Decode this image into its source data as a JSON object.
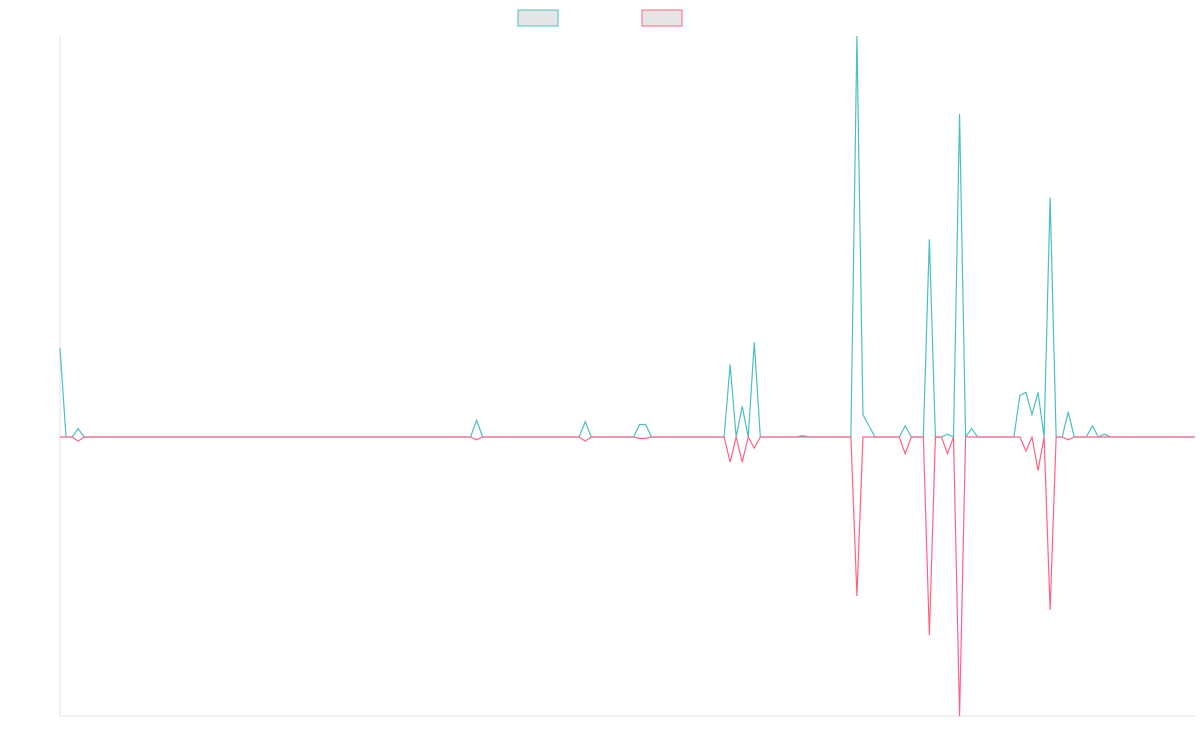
{
  "chart_data": {
    "type": "line",
    "title": "",
    "xlabel": "",
    "ylabel": "",
    "grid": false,
    "legend_position": "top-center",
    "ylim": [
      -1,
      1.1
    ],
    "series": [
      {
        "color": "#4bc0c0",
        "fill": "#e6e6e6",
        "values": [
          0.32,
          0,
          0,
          0.03,
          0,
          0,
          0,
          0,
          0,
          0,
          0,
          0,
          0,
          0,
          0,
          0,
          0,
          0,
          0,
          0,
          0,
          0,
          0,
          0,
          0,
          0,
          0,
          0,
          0,
          0,
          0,
          0,
          0,
          0,
          0,
          0,
          0,
          0,
          0,
          0,
          0,
          0,
          0,
          0,
          0,
          0,
          0,
          0,
          0,
          0,
          0,
          0,
          0,
          0,
          0,
          0,
          0,
          0,
          0,
          0,
          0,
          0,
          0,
          0,
          0,
          0,
          0,
          0,
          0,
          0.06,
          0,
          0,
          0,
          0,
          0,
          0,
          0,
          0,
          0,
          0,
          0,
          0,
          0,
          0,
          0,
          0,
          0,
          0.055,
          0,
          0,
          0,
          0,
          0,
          0,
          0,
          0,
          0.045,
          0.045,
          0,
          0,
          0,
          0,
          0,
          0,
          0,
          0,
          0,
          0,
          0,
          0,
          0,
          0.26,
          0,
          0.11,
          0,
          0.34,
          0,
          0,
          0,
          0,
          0,
          0,
          0,
          0.005,
          0,
          0,
          0,
          0,
          0,
          0,
          0,
          0,
          1.44,
          0.08,
          0.04,
          0,
          0,
          0,
          0,
          0,
          0.04,
          0,
          0,
          0,
          0.71,
          0,
          0,
          0.01,
          0,
          1.16,
          0,
          0.03,
          0,
          0,
          0,
          0,
          0,
          0,
          0,
          0.15,
          0.16,
          0.08,
          0.16,
          0,
          0.86,
          0,
          0,
          0.09,
          0,
          0,
          0,
          0.04,
          0,
          0.01,
          0,
          0,
          0,
          0,
          0,
          0,
          0,
          0,
          0,
          0,
          0,
          0,
          0,
          0,
          0
        ]
      },
      {
        "color": "#ff6384",
        "fill": "#e6e6e6",
        "values": [
          0,
          0,
          0,
          -0.015,
          0,
          0,
          0,
          0,
          0,
          0,
          0,
          0,
          0,
          0,
          0,
          0,
          0,
          0,
          0,
          0,
          0,
          0,
          0,
          0,
          0,
          0,
          0,
          0,
          0,
          0,
          0,
          0,
          0,
          0,
          0,
          0,
          0,
          0,
          0,
          0,
          0,
          0,
          0,
          0,
          0,
          0,
          0,
          0,
          0,
          0,
          0,
          0,
          0,
          0,
          0,
          0,
          0,
          0,
          0,
          0,
          0,
          0,
          0,
          0,
          0,
          0,
          0,
          0,
          0,
          -0.01,
          0,
          0,
          0,
          0,
          0,
          0,
          0,
          0,
          0,
          0,
          0,
          0,
          0,
          0,
          0,
          0,
          0,
          -0.015,
          0,
          0,
          0,
          0,
          0,
          0,
          0,
          0,
          -0.005,
          -0.005,
          0,
          0,
          0,
          0,
          0,
          0,
          0,
          0,
          0,
          0,
          0,
          0,
          0,
          -0.09,
          0,
          -0.09,
          0,
          -0.04,
          0,
          0,
          0,
          0,
          0,
          0,
          0,
          0,
          0,
          0,
          0,
          0,
          0,
          0,
          0,
          0,
          -0.57,
          0,
          0,
          0,
          0,
          0,
          0,
          0,
          -0.06,
          0,
          0,
          0,
          -0.71,
          0,
          0,
          -0.06,
          0,
          -1.0,
          0,
          0,
          0,
          0,
          0,
          0,
          0,
          0,
          0,
          0,
          -0.05,
          0,
          -0.12,
          0,
          -0.62,
          0,
          0,
          -0.01,
          0,
          0,
          0,
          0,
          0,
          0,
          0,
          0,
          0,
          0,
          0,
          0,
          0,
          0,
          0,
          0,
          0,
          0,
          0,
          0,
          0
        ]
      }
    ]
  }
}
